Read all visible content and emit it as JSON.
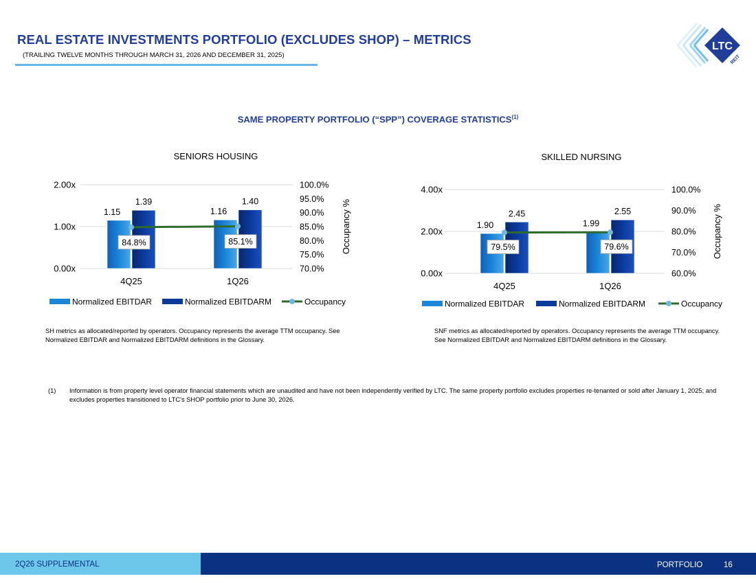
{
  "header": {
    "title": "REAL ESTATE INVESTMENTS PORTFOLIO (EXCLUDES SHOP) – METRICS",
    "subtitle": "(TRAILING TWELVE MONTHS THROUGH MARCH 31, 2026 AND DECEMBER 31, 2025)"
  },
  "logo": {
    "text": "LTC",
    "subtext": "REIT"
  },
  "section": {
    "heading": "SAME PROPERTY PORTFOLIO (“SPP”) COVERAGE STATISTICS",
    "sup": "(1)"
  },
  "colors": {
    "ebitdar": "#1b86d8",
    "ebitdarm": "#0b3a9a",
    "occupancy_line": "#2e6b2a",
    "occupancy_marker": "#6fb7dc",
    "title": "#1f3d99"
  },
  "chart_data": [
    {
      "type": "bar",
      "title": "SENIORS HOUSING",
      "categories": [
        "4Q25",
        "1Q26"
      ],
      "series": [
        {
          "name": "Normalized EBITDAR",
          "values": [
            1.15,
            1.16
          ],
          "labels": [
            "1.15",
            "1.16"
          ],
          "axis": "left"
        },
        {
          "name": "Normalized EBITDARM",
          "values": [
            1.39,
            1.4
          ],
          "labels": [
            "1.39",
            "1.40"
          ],
          "axis": "left"
        },
        {
          "name": "Occupancy",
          "type": "line",
          "values": [
            84.8,
            85.1
          ],
          "labels": [
            "84.8%",
            "85.1%"
          ],
          "axis": "right"
        }
      ],
      "y_left": {
        "min": 0,
        "max": 2,
        "ticks": [
          0,
          1,
          2
        ],
        "tick_labels": [
          "0.00x",
          "1.00x",
          "2.00x"
        ]
      },
      "y_right": {
        "min": 70,
        "max": 100,
        "ticks": [
          70,
          75,
          80,
          85,
          90,
          95,
          100
        ],
        "tick_labels": [
          "70.0%",
          "75.0%",
          "80.0%",
          "85.0%",
          "90.0%",
          "95.0%",
          "100.0%"
        ],
        "label": "Occupancy %"
      },
      "grid": true,
      "legend": "bottom",
      "note": "SH metrics as allocated/reported by operators. Occupancy represents the average TTM occupancy. See Normalized EBITDAR and Normalized EBITDARM definitions in the Glossary."
    },
    {
      "type": "bar",
      "title": "SKILLED NURSING",
      "categories": [
        "4Q25",
        "1Q26"
      ],
      "series": [
        {
          "name": "Normalized EBITDAR",
          "values": [
            1.9,
            1.99
          ],
          "labels": [
            "1.90",
            "1.99"
          ],
          "axis": "left"
        },
        {
          "name": "Normalized EBITDARM",
          "values": [
            2.45,
            2.55
          ],
          "labels": [
            "2.45",
            "2.55"
          ],
          "axis": "left"
        },
        {
          "name": "Occupancy",
          "type": "line",
          "values": [
            79.5,
            79.6
          ],
          "labels": [
            "79.5%",
            "79.6%"
          ],
          "axis": "right"
        }
      ],
      "y_left": {
        "min": 0,
        "max": 4,
        "ticks": [
          0,
          2,
          4
        ],
        "tick_labels": [
          "0.00x",
          "2.00x",
          "4.00x"
        ]
      },
      "y_right": {
        "min": 60,
        "max": 100,
        "ticks": [
          60,
          70,
          80,
          90,
          100
        ],
        "tick_labels": [
          "60.0%",
          "70.0%",
          "80.0%",
          "90.0%",
          "100.0%"
        ],
        "label": "Occupancy %"
      },
      "grid": true,
      "legend": "bottom",
      "note": "SNF metrics as allocated/reported by operators. Occupancy represents the average TTM occupancy. See Normalized EBITDAR and Normalized EBITDARM definitions in the Glossary."
    }
  ],
  "footnote": {
    "number": "(1)",
    "text": "Information is from property level operator financial statements which are unaudited and have not been independently verified by LTC. The same property portfolio excludes properties re-tenanted or sold after January 1, 2025; and excludes properties transitioned to LTC’s SHOP portfolio prior to June 30, 2026."
  },
  "footer": {
    "left": "2Q26 SUPPLEMENTAL",
    "section": "PORTFOLIO",
    "page": "16"
  }
}
